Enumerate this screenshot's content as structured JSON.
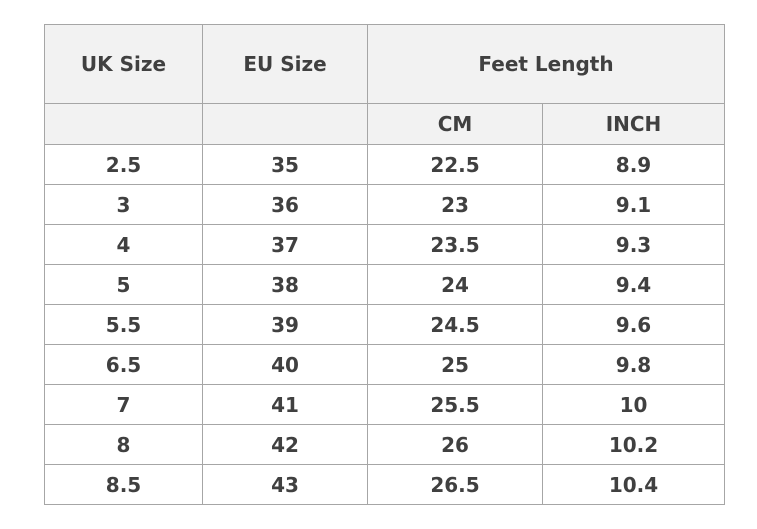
{
  "table": {
    "header": {
      "uk": "UK Size",
      "eu": "EU Size",
      "feet": "Feet Length",
      "sub": [
        "CM",
        "INCH"
      ]
    },
    "rows": [
      [
        "2.5",
        "35",
        "22.5",
        "8.9"
      ],
      [
        "3",
        "36",
        "23",
        "9.1"
      ],
      [
        "4",
        "37",
        "23.5",
        "9.3"
      ],
      [
        "5",
        "38",
        "24",
        "9.4"
      ],
      [
        "5.5",
        "39",
        "24.5",
        "9.6"
      ],
      [
        "6.5",
        "40",
        "25",
        "9.8"
      ],
      [
        "7",
        "41",
        "25.5",
        "10"
      ],
      [
        "8",
        "42",
        "26",
        "10.2"
      ],
      [
        "8.5",
        "43",
        "26.5",
        "10.4"
      ]
    ]
  }
}
